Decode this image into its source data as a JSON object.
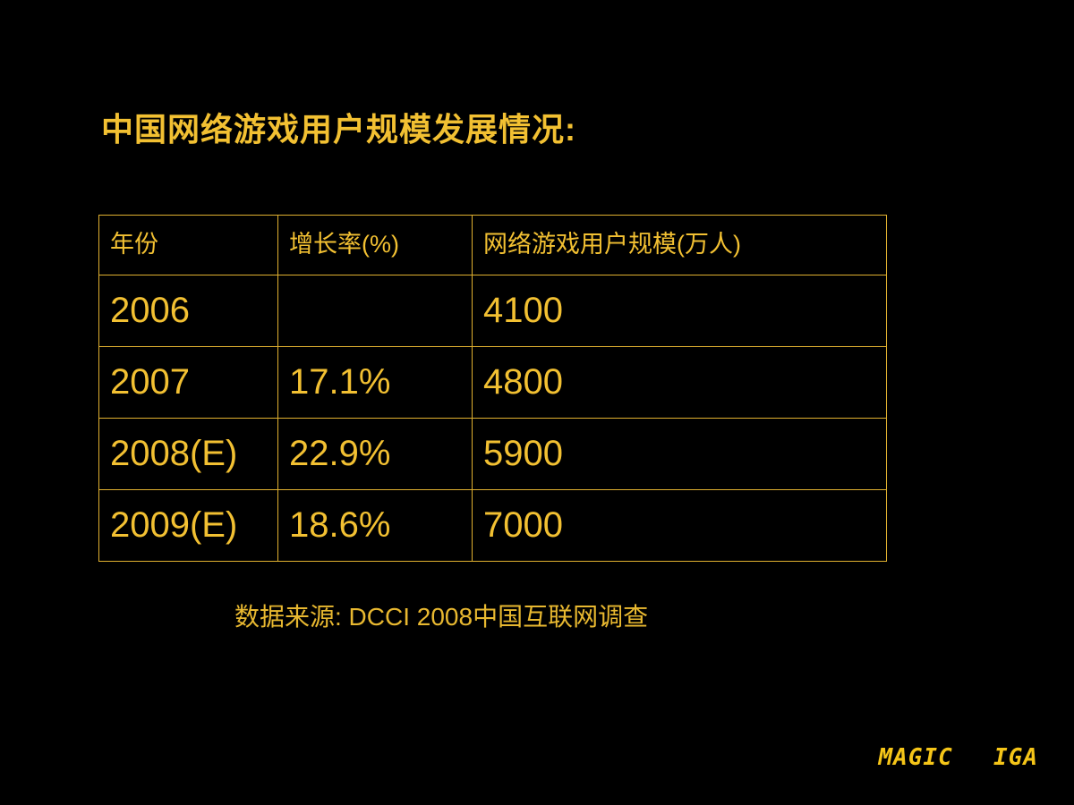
{
  "title": "中国网络游戏用户规模发展情况:",
  "table": {
    "headers": [
      "年份",
      "增长率(%)",
      "网络游戏用户规模(万人)"
    ],
    "rows": [
      [
        "2006",
        "",
        "4100"
      ],
      [
        "2007",
        "17.1%",
        "4800"
      ],
      [
        "2008(E)",
        "22.9%",
        "5900"
      ],
      [
        "2009(E)",
        "18.6%",
        "7000"
      ]
    ]
  },
  "source": "数据来源: DCCI 2008中国互联网调查",
  "brand": "MAGIC  IGA",
  "colors": {
    "background": "#000000",
    "accent": "#f2c032",
    "border": "#e0b030"
  }
}
